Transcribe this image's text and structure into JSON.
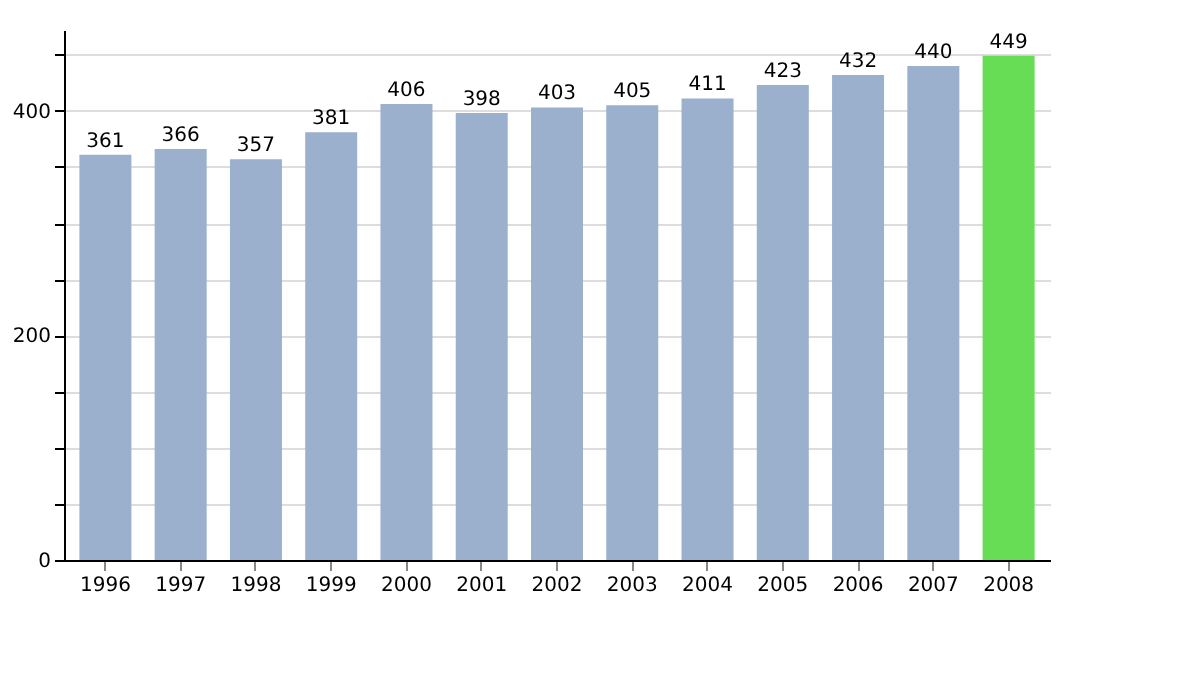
{
  "chart_data": {
    "type": "bar",
    "categories": [
      "1996",
      "1997",
      "1998",
      "1999",
      "2000",
      "2001",
      "2002",
      "2003",
      "2004",
      "2005",
      "2006",
      "2007",
      "2008"
    ],
    "values": [
      361,
      366,
      357,
      381,
      406,
      398,
      403,
      405,
      411,
      423,
      432,
      440,
      449
    ],
    "colors": [
      "#9ab0cc",
      "#9ab0cc",
      "#9ab0cc",
      "#9ab0cc",
      "#9ab0cc",
      "#9ab0cc",
      "#9ab0cc",
      "#9ab0cc",
      "#9ab0cc",
      "#9ab0cc",
      "#9ab0cc",
      "#9ab0cc",
      "#66dd55"
    ],
    "ylim": [
      0,
      472
    ],
    "yticks": [
      0,
      {
        "value": 50,
        "label": null
      },
      {
        "value": 100,
        "label": null
      },
      {
        "value": 150,
        "label": null
      },
      200,
      {
        "value": 250,
        "label": null
      },
      {
        "value": 300,
        "label": null
      },
      {
        "value": 350,
        "label": null
      },
      400,
      {
        "value": 450,
        "label": null
      }
    ],
    "grid": "y",
    "data_labels": true
  }
}
